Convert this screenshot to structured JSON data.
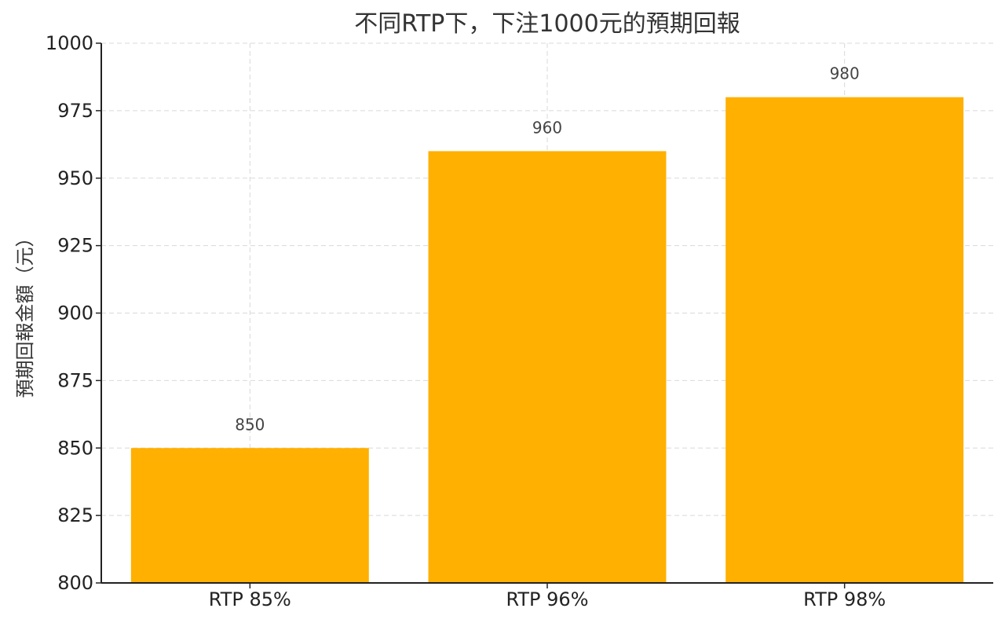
{
  "chart_data": {
    "type": "bar",
    "title": "不同RTP下，下注1000元的預期回報",
    "xlabel": "",
    "ylabel": "預期回報金額（元）",
    "categories": [
      "RTP 85%",
      "RTP 96%",
      "RTP 98%"
    ],
    "values": [
      850,
      960,
      980
    ],
    "data_labels": [
      "850",
      "960",
      "980"
    ],
    "ylim": [
      800,
      1000
    ],
    "yticks": [
      800,
      825,
      850,
      875,
      900,
      925,
      950,
      975,
      1000
    ],
    "ytick_labels": [
      "800",
      "825",
      "850",
      "875",
      "900",
      "925",
      "950",
      "975",
      "1000"
    ],
    "grid": true,
    "bar_color": "#FFB000"
  }
}
